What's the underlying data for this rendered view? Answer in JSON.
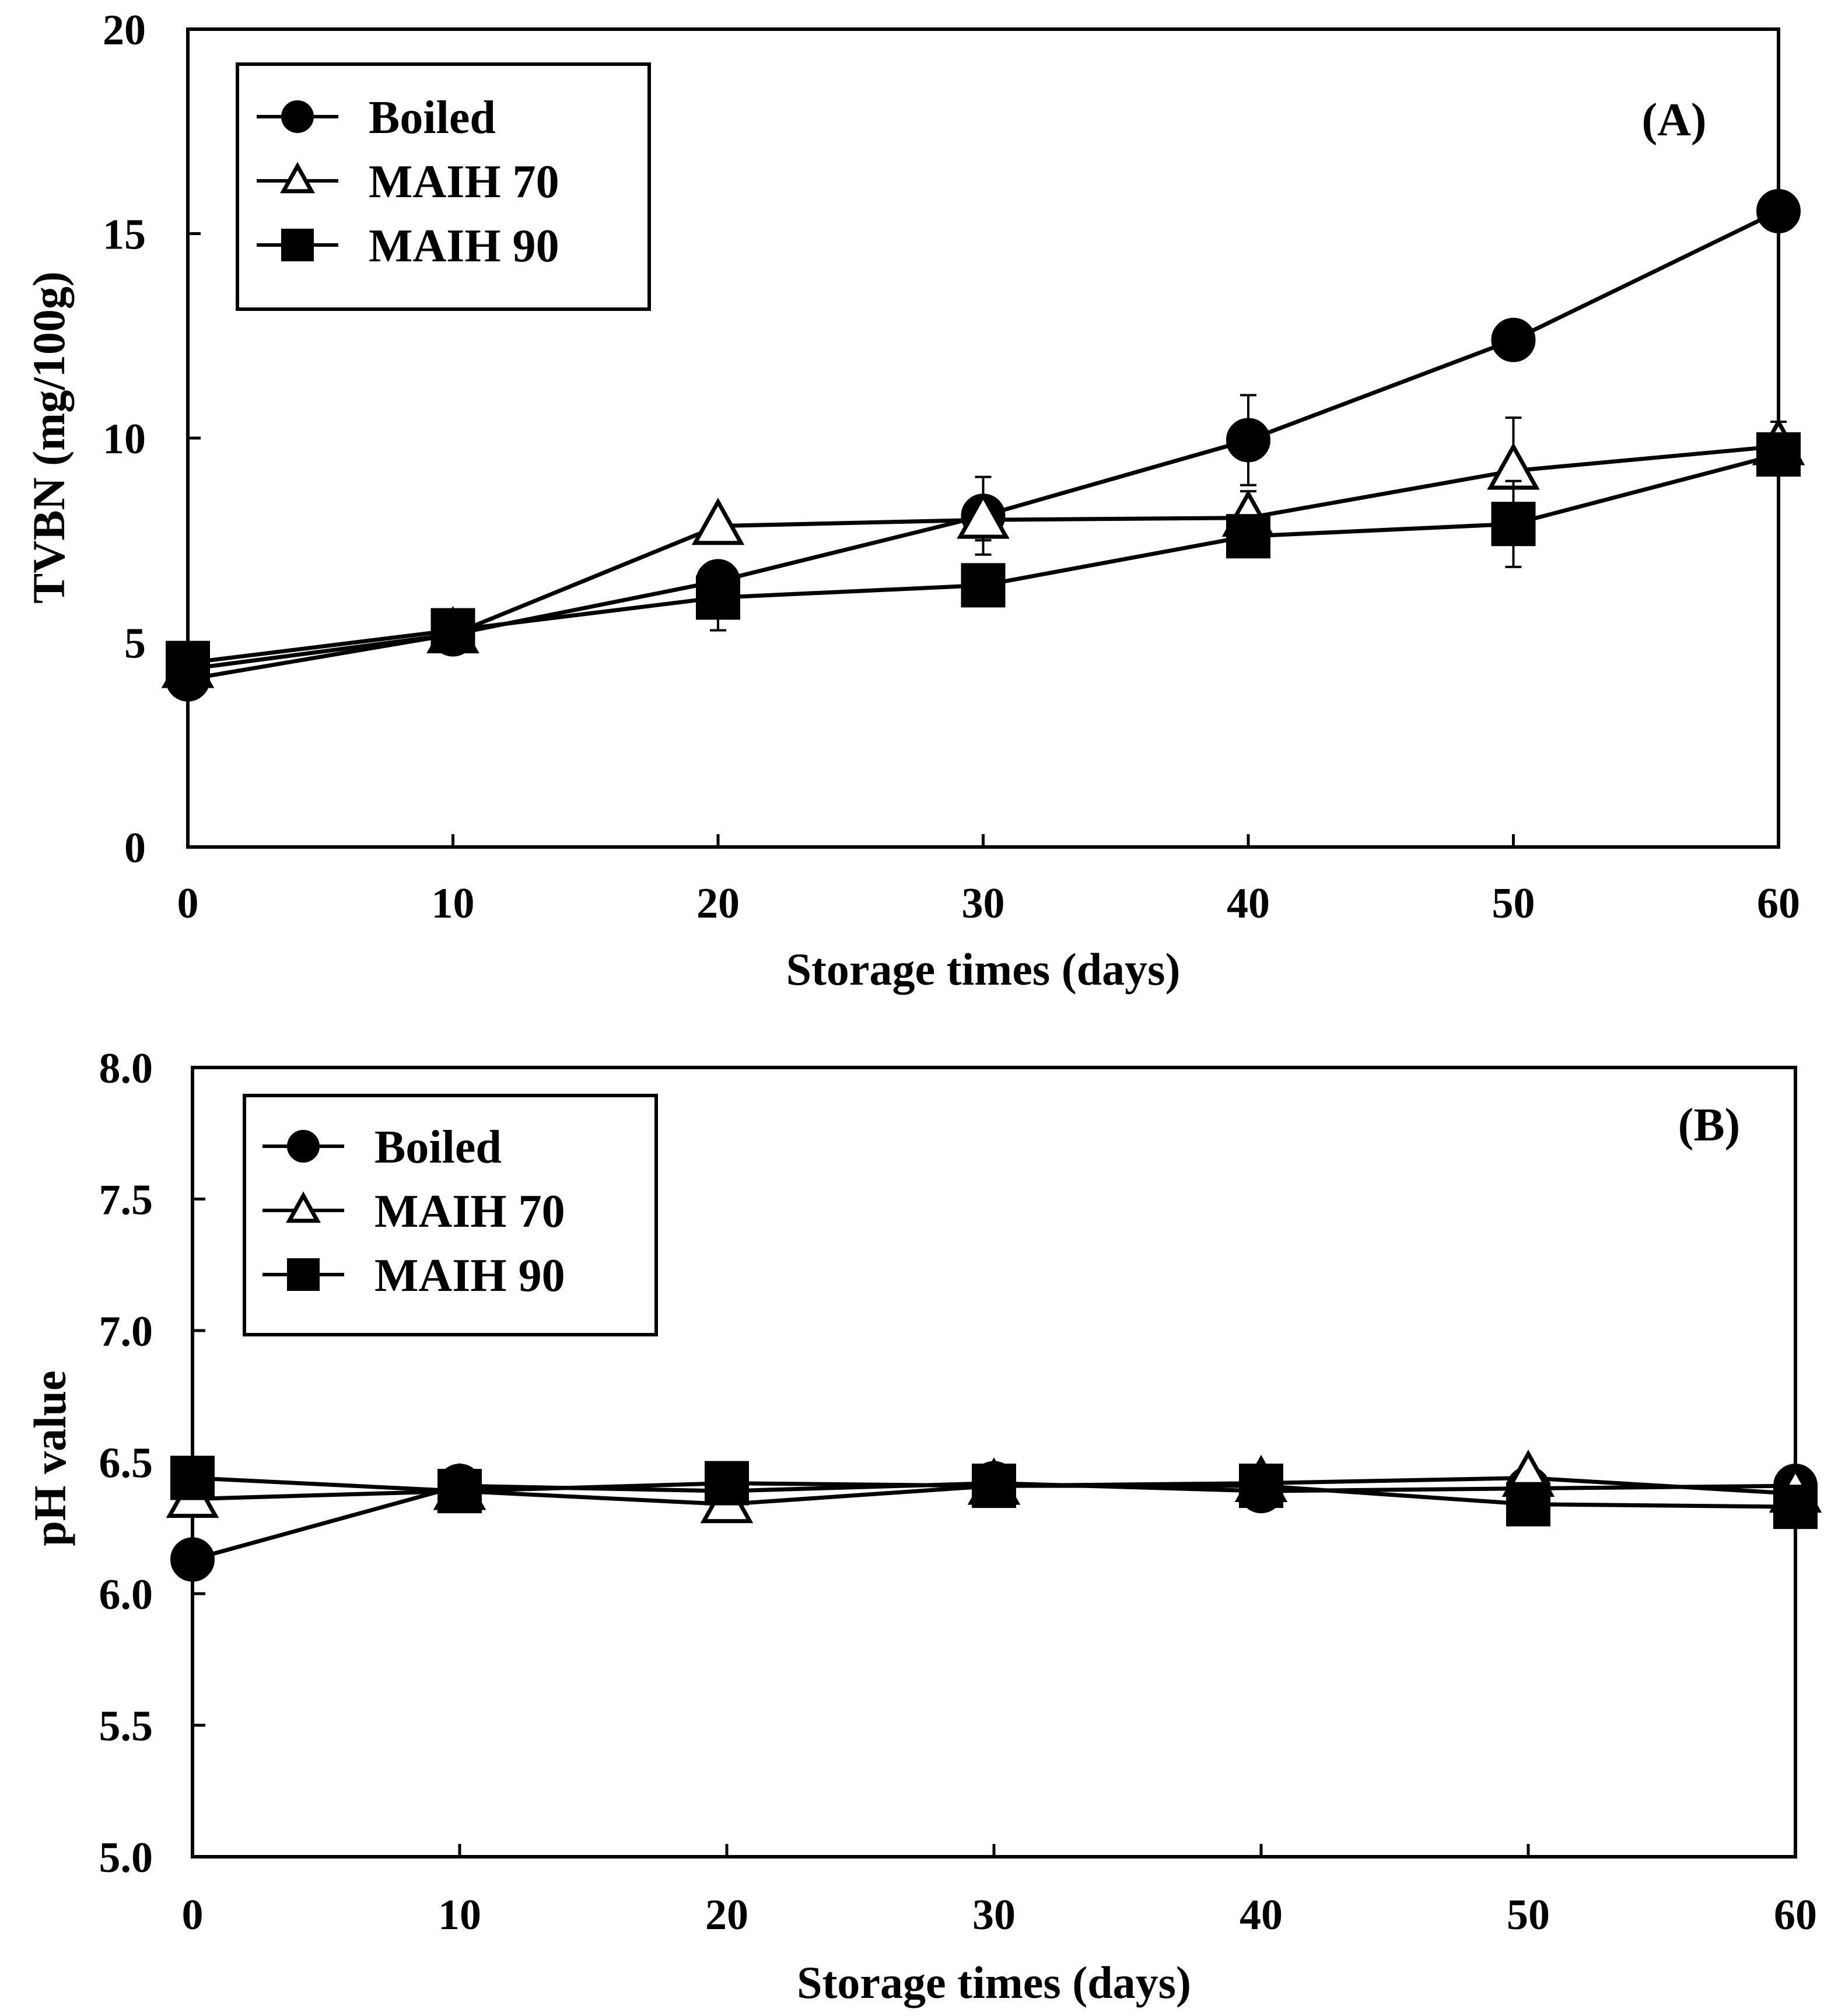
{
  "chart_data": [
    {
      "type": "line",
      "panel_label": "(A)",
      "xlabel": "Storage times (days)",
      "ylabel": "TVBN (mg/100g)",
      "xlim": [
        0,
        60
      ],
      "ylim": [
        0,
        20
      ],
      "xticks": [
        "0",
        "10",
        "20",
        "30",
        "40",
        "50",
        "60"
      ],
      "yticks": [
        "0",
        "5",
        "10",
        "15",
        "20"
      ],
      "grid": false,
      "legend_position": "top-left",
      "x": [
        0,
        10,
        20,
        30,
        40,
        50,
        60
      ],
      "series": [
        {
          "name": "Boiled",
          "marker": "filled-circle",
          "values": [
            4.1,
            5.2,
            6.5,
            8.1,
            9.95,
            12.4,
            15.55
          ],
          "errors": [
            0.0,
            0.3,
            0.0,
            0.95,
            1.1,
            0.0,
            0.0
          ]
        },
        {
          "name": "MAIH 70",
          "marker": "open-triangle",
          "values": [
            4.35,
            5.2,
            7.85,
            8.0,
            8.05,
            9.2,
            9.8
          ],
          "errors": [
            0.0,
            0.3,
            0.0,
            0.5,
            0.65,
            1.3,
            0.6
          ]
        },
        {
          "name": "MAIH 90",
          "marker": "filled-square",
          "values": [
            4.5,
            5.3,
            6.1,
            6.4,
            7.6,
            7.9,
            9.6
          ],
          "errors": [
            0.0,
            0.3,
            0.8,
            0.0,
            0.0,
            1.05,
            0.0
          ]
        }
      ]
    },
    {
      "type": "line",
      "panel_label": "(B)",
      "xlabel": "Storage times (days)",
      "ylabel": "pH value",
      "xlim": [
        0,
        60
      ],
      "ylim": [
        5.0,
        8.0
      ],
      "xticks": [
        "0",
        "10",
        "20",
        "30",
        "40",
        "50",
        "60"
      ],
      "yticks": [
        "5.0",
        "5.5",
        "6.0",
        "6.5",
        "7.0",
        "7.5",
        "8.0"
      ],
      "grid": false,
      "legend_position": "top-left",
      "x": [
        0,
        10,
        20,
        30,
        40,
        50,
        60
      ],
      "series": [
        {
          "name": "Boiled",
          "marker": "filled-circle",
          "values": [
            6.13,
            6.41,
            6.39,
            6.42,
            6.39,
            6.4,
            6.41
          ]
        },
        {
          "name": "MAIH 70",
          "marker": "open-triangle",
          "values": [
            6.36,
            6.39,
            6.34,
            6.41,
            6.42,
            6.44,
            6.38
          ]
        },
        {
          "name": "MAIH 90",
          "marker": "filled-square",
          "values": [
            6.44,
            6.39,
            6.42,
            6.41,
            6.41,
            6.34,
            6.33
          ]
        }
      ]
    }
  ]
}
